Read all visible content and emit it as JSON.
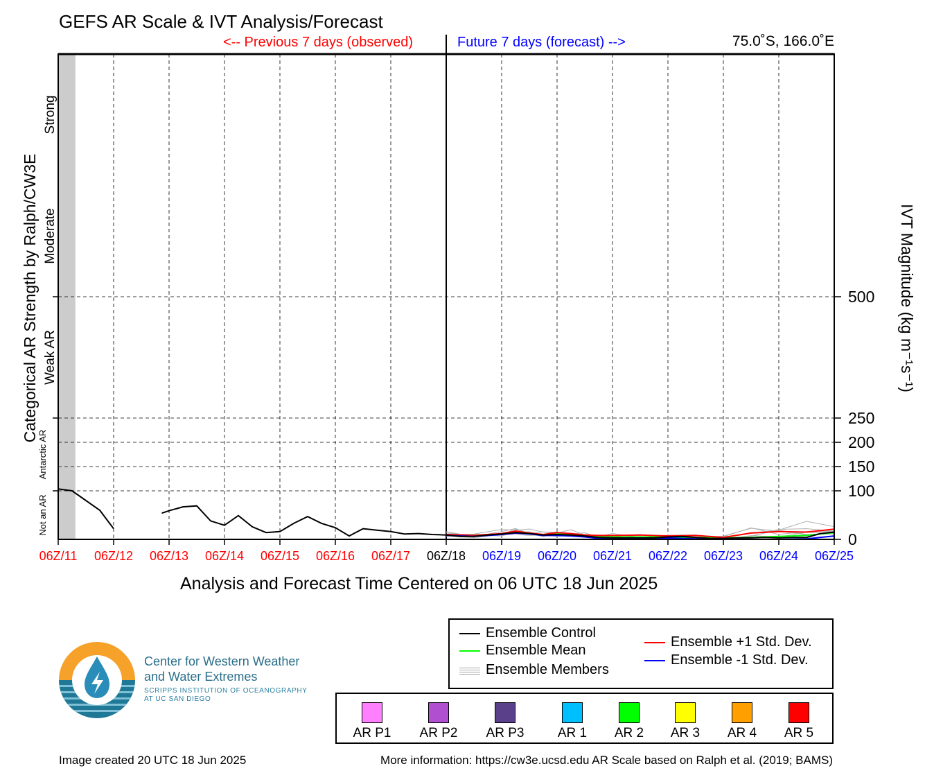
{
  "title": "GEFS AR Scale & IVT Analysis/Forecast",
  "previous_label": "<-- Previous 7 days (observed)",
  "future_label": "Future 7 days (forecast) -->",
  "location": "75.0˚S, 166.0˚E",
  "xaxis_title": "Analysis and Forecast Time Centered on 06 UTC 18 Jun 2025",
  "left_axis_title": "Categorical AR Strength by Ralph/CW3E",
  "right_axis_title": "IVT Magnitude (kg m⁻¹s⁻¹)",
  "footer_left": "Image created 20 UTC 18 Jun 2025",
  "footer_right": "More information: https://cw3e.ucsd.edu AR Scale based on Ralph et al. (2019; BAMS)",
  "logo": {
    "line1": "Center for Western Weather",
    "line2": "and Water Extremes",
    "line3": "SCRIPPS INSTITUTION OF OCEANOGRAPHY",
    "line4": "AT UC SAN DIEGO"
  },
  "legend": {
    "items": [
      {
        "label": "Ensemble Control",
        "color": "#000000"
      },
      {
        "label": "Ensemble Mean",
        "color": "#00ff00"
      },
      {
        "label": "Ensemble Members",
        "color": "#aaaaaa"
      },
      {
        "label": "Ensemble +1 Std. Dev.",
        "color": "#ff0000"
      },
      {
        "label": "Ensemble -1 Std. Dev.",
        "color": "#0000ff"
      }
    ]
  },
  "ar_scale": [
    {
      "label": "AR P1",
      "color": "#ff80ff"
    },
    {
      "label": "AR P2",
      "color": "#b050d0"
    },
    {
      "label": "AR P3",
      "color": "#5a3f8a"
    },
    {
      "label": "AR 1",
      "color": "#00bfff"
    },
    {
      "label": "AR 2",
      "color": "#00ff00"
    },
    {
      "label": "AR 3",
      "color": "#ffff00"
    },
    {
      "label": "AR 4",
      "color": "#ffa000"
    },
    {
      "label": "AR 5",
      "color": "#ff0000"
    }
  ],
  "chart_data": {
    "type": "line",
    "xlabel": "Analysis and Forecast Time Centered on 06 UTC 18 Jun 2025",
    "ylabel": "IVT Magnitude (kg m⁻¹s⁻¹)",
    "xlim": [
      0,
      14
    ],
    "ylim": [
      0,
      1000
    ],
    "x_ticks": [
      {
        "label": "06Z/11",
        "color": "#ff0000"
      },
      {
        "label": "06Z/12",
        "color": "#ff0000"
      },
      {
        "label": "06Z/13",
        "color": "#ff0000"
      },
      {
        "label": "06Z/14",
        "color": "#ff0000"
      },
      {
        "label": "06Z/15",
        "color": "#ff0000"
      },
      {
        "label": "06Z/16",
        "color": "#ff0000"
      },
      {
        "label": "06Z/17",
        "color": "#ff0000"
      },
      {
        "label": "06Z/18",
        "color": "#000000"
      },
      {
        "label": "06Z/19",
        "color": "#0000ff"
      },
      {
        "label": "06Z/20",
        "color": "#0000ff"
      },
      {
        "label": "06Z/21",
        "color": "#0000ff"
      },
      {
        "label": "06Z/22",
        "color": "#0000ff"
      },
      {
        "label": "06Z/23",
        "color": "#0000ff"
      },
      {
        "label": "06Z/24",
        "color": "#0000ff"
      },
      {
        "label": "06Z/25",
        "color": "#0000ff"
      }
    ],
    "y_ticks": [
      0,
      100,
      150,
      200,
      250,
      500
    ],
    "categories_left": [
      {
        "label": "Not an AR",
        "from": 0,
        "to": 100,
        "small": true
      },
      {
        "label": "Antarctic AR",
        "from": 100,
        "to": 250,
        "small": true
      },
      {
        "label": "Weak AR",
        "from": 250,
        "to": 500
      },
      {
        "label": "Moderate",
        "from": 500,
        "to": 750
      },
      {
        "label": "Strong",
        "from": 750,
        "to": 1000
      }
    ],
    "missing_shading_days": [
      0,
      0.31
    ],
    "control_segments": [
      [
        [
          0,
          104
        ],
        [
          0.25,
          100
        ],
        [
          0.5,
          80
        ],
        [
          0.75,
          60
        ],
        [
          1.0,
          22
        ]
      ],
      [
        [
          1.87,
          54
        ],
        [
          2.0,
          59
        ],
        [
          2.25,
          67
        ],
        [
          2.5,
          69
        ],
        [
          2.75,
          38
        ],
        [
          3.0,
          29
        ],
        [
          3.25,
          49
        ],
        [
          3.5,
          26
        ],
        [
          3.75,
          14
        ],
        [
          4.0,
          16
        ],
        [
          4.25,
          33
        ],
        [
          4.5,
          47
        ],
        [
          4.75,
          33
        ],
        [
          5.0,
          24
        ],
        [
          5.25,
          7
        ],
        [
          5.5,
          22
        ],
        [
          5.75,
          19
        ],
        [
          6.0,
          16
        ],
        [
          6.25,
          11
        ],
        [
          6.5,
          12
        ],
        [
          6.75,
          10
        ],
        [
          7.0,
          9
        ],
        [
          7.25,
          6
        ],
        [
          7.5,
          6
        ],
        [
          7.75,
          9
        ],
        [
          8.0,
          11
        ],
        [
          8.25,
          14
        ],
        [
          8.5,
          12
        ],
        [
          8.75,
          9
        ],
        [
          9.0,
          10
        ],
        [
          9.25,
          9
        ],
        [
          9.5,
          7
        ],
        [
          9.75,
          4
        ],
        [
          10.0,
          3
        ],
        [
          10.25,
          3
        ],
        [
          10.5,
          3
        ],
        [
          10.75,
          3
        ],
        [
          11.0,
          5
        ],
        [
          11.25,
          6
        ],
        [
          11.5,
          4
        ],
        [
          11.75,
          2
        ],
        [
          12.0,
          2
        ],
        [
          12.25,
          3
        ],
        [
          12.5,
          3
        ],
        [
          12.75,
          4
        ],
        [
          13.0,
          3
        ],
        [
          13.25,
          4
        ],
        [
          13.5,
          4
        ],
        [
          13.75,
          12
        ],
        [
          14.0,
          15
        ]
      ]
    ],
    "series": [
      {
        "name": "Ensemble Mean",
        "color": "#00ff00",
        "points": [
          [
            7.0,
            9
          ],
          [
            7.5,
            7
          ],
          [
            8.0,
            11
          ],
          [
            8.25,
            15
          ],
          [
            8.5,
            12
          ],
          [
            8.75,
            9
          ],
          [
            9.0,
            11
          ],
          [
            9.25,
            10
          ],
          [
            9.5,
            7
          ],
          [
            9.75,
            5
          ],
          [
            10.0,
            5
          ],
          [
            10.5,
            5
          ],
          [
            11.0,
            5
          ],
          [
            11.5,
            4
          ],
          [
            12.0,
            3
          ],
          [
            12.5,
            4
          ],
          [
            13.0,
            6
          ],
          [
            13.5,
            8
          ],
          [
            14.0,
            14
          ]
        ]
      },
      {
        "name": "Ensemble +1 Std. Dev.",
        "color": "#ff0000",
        "points": [
          [
            7.0,
            10
          ],
          [
            7.5,
            8
          ],
          [
            8.0,
            12
          ],
          [
            8.25,
            17
          ],
          [
            8.5,
            13
          ],
          [
            8.75,
            10
          ],
          [
            9.0,
            14
          ],
          [
            9.25,
            12
          ],
          [
            9.5,
            9
          ],
          [
            9.75,
            8
          ],
          [
            10.0,
            8
          ],
          [
            10.5,
            9
          ],
          [
            11.0,
            7
          ],
          [
            11.5,
            8
          ],
          [
            12.0,
            4
          ],
          [
            12.5,
            13
          ],
          [
            13.0,
            16
          ],
          [
            13.5,
            15
          ],
          [
            14.0,
            21
          ]
        ]
      },
      {
        "name": "Ensemble -1 Std. Dev.",
        "color": "#0000ff",
        "points": [
          [
            7.0,
            8
          ],
          [
            7.5,
            6
          ],
          [
            8.0,
            10
          ],
          [
            8.25,
            13
          ],
          [
            8.5,
            11
          ],
          [
            8.75,
            8
          ],
          [
            9.0,
            8
          ],
          [
            9.25,
            7
          ],
          [
            9.5,
            5
          ],
          [
            9.75,
            2
          ],
          [
            10.0,
            2
          ],
          [
            10.5,
            2
          ],
          [
            11.0,
            3
          ],
          [
            11.5,
            1
          ],
          [
            12.0,
            1
          ],
          [
            12.5,
            0
          ],
          [
            13.0,
            0
          ],
          [
            13.5,
            1
          ],
          [
            14.0,
            7
          ]
        ]
      }
    ]
  }
}
